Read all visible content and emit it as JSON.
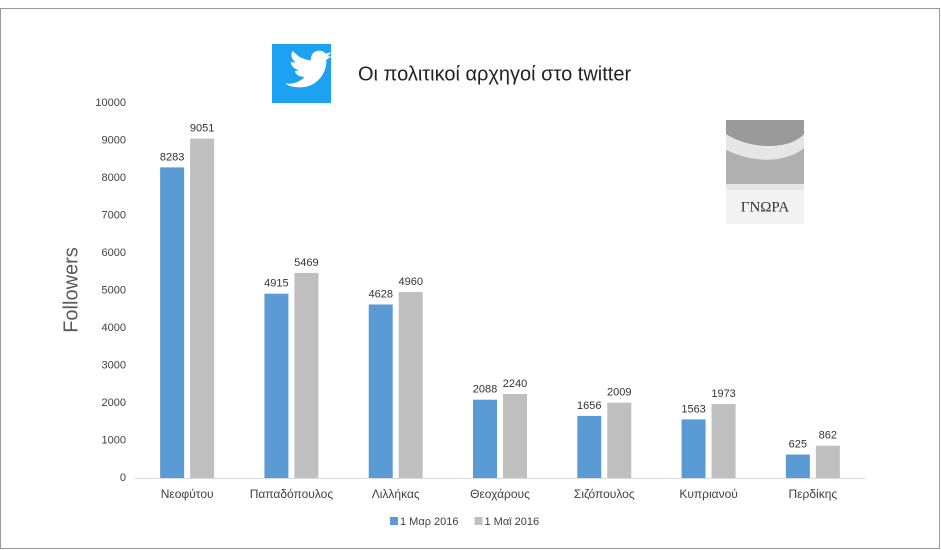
{
  "chart_data": {
    "type": "bar",
    "title": "Οι πολιτικοί αρχηγοί στο twitter",
    "y_label": "Followers",
    "annotations": [
      "ΓΝΩΡΑ"
    ],
    "categories": [
      "Νεοφύτου",
      "Παπαδόπουλος",
      "Λιλλήκας",
      "Θεοχάρους",
      "Σιζόπουλος",
      "Κυπριανού",
      "Περδίκης"
    ],
    "series": [
      {
        "name": "1 Μαρ 2016",
        "color": "#5b9bd5",
        "values": [
          8283,
          4915,
          4628,
          2088,
          1656,
          1563,
          625
        ]
      },
      {
        "name": "1 Μαϊ 2016",
        "color": "#bfbfbf",
        "values": [
          9051,
          5469,
          4960,
          2240,
          2009,
          1973,
          862
        ]
      }
    ],
    "ylim": [
      0,
      10000
    ],
    "yticks": [
      0,
      1000,
      2000,
      3000,
      4000,
      5000,
      6000,
      7000,
      8000,
      9000,
      10000
    ],
    "grid": false,
    "legend": "bottom"
  }
}
